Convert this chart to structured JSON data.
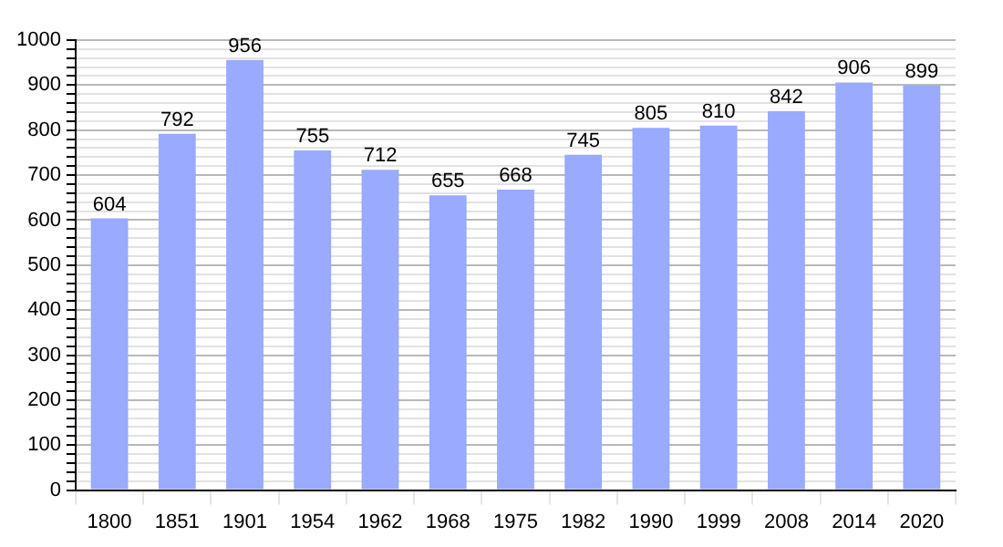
{
  "chart_data": {
    "type": "bar",
    "categories": [
      "1800",
      "1851",
      "1901",
      "1954",
      "1962",
      "1968",
      "1975",
      "1982",
      "1990",
      "1999",
      "2008",
      "2014",
      "2020"
    ],
    "values": [
      604,
      792,
      956,
      755,
      712,
      655,
      668,
      745,
      805,
      810,
      842,
      906,
      899
    ],
    "color": "#99aaff",
    "data_labels": true,
    "ylim": [
      0,
      1000
    ],
    "yticks": [
      0,
      {
        "value": 20,
        "label": null
      },
      {
        "value": 40,
        "label": null
      },
      {
        "value": 60,
        "label": null
      },
      {
        "value": 80,
        "label": null
      },
      100,
      {
        "value": 120,
        "label": null
      },
      {
        "value": 140,
        "label": null
      },
      {
        "value": 160,
        "label": null
      },
      {
        "value": 180,
        "label": null
      },
      200,
      {
        "value": 220,
        "label": null
      },
      {
        "value": 240,
        "label": null
      },
      {
        "value": 260,
        "label": null
      },
      {
        "value": 280,
        "label": null
      },
      300,
      {
        "value": 320,
        "label": null
      },
      {
        "value": 340,
        "label": null
      },
      {
        "value": 360,
        "label": null
      },
      {
        "value": 380,
        "label": null
      },
      400,
      {
        "value": 420,
        "label": null
      },
      {
        "value": 440,
        "label": null
      },
      {
        "value": 460,
        "label": null
      },
      {
        "value": 480,
        "label": null
      },
      500,
      {
        "value": 520,
        "label": null
      },
      {
        "value": 540,
        "label": null
      },
      {
        "value": 560,
        "label": null
      },
      {
        "value": 580,
        "label": null
      },
      600,
      {
        "value": 620,
        "label": null
      },
      {
        "value": 640,
        "label": null
      },
      {
        "value": 660,
        "label": null
      },
      {
        "value": 680,
        "label": null
      },
      700,
      {
        "value": 720,
        "label": null
      },
      {
        "value": 740,
        "label": null
      },
      {
        "value": 760,
        "label": null
      },
      {
        "value": 780,
        "label": null
      },
      800,
      {
        "value": 820,
        "label": null
      },
      {
        "value": 840,
        "label": null
      },
      {
        "value": 860,
        "label": null
      },
      {
        "value": 880,
        "label": null
      },
      900,
      {
        "value": 920,
        "label": null
      },
      {
        "value": 940,
        "label": null
      },
      {
        "value": 960,
        "label": null
      },
      {
        "value": 980,
        "label": null
      },
      1000
    ],
    "grid": true,
    "legend": false
  }
}
